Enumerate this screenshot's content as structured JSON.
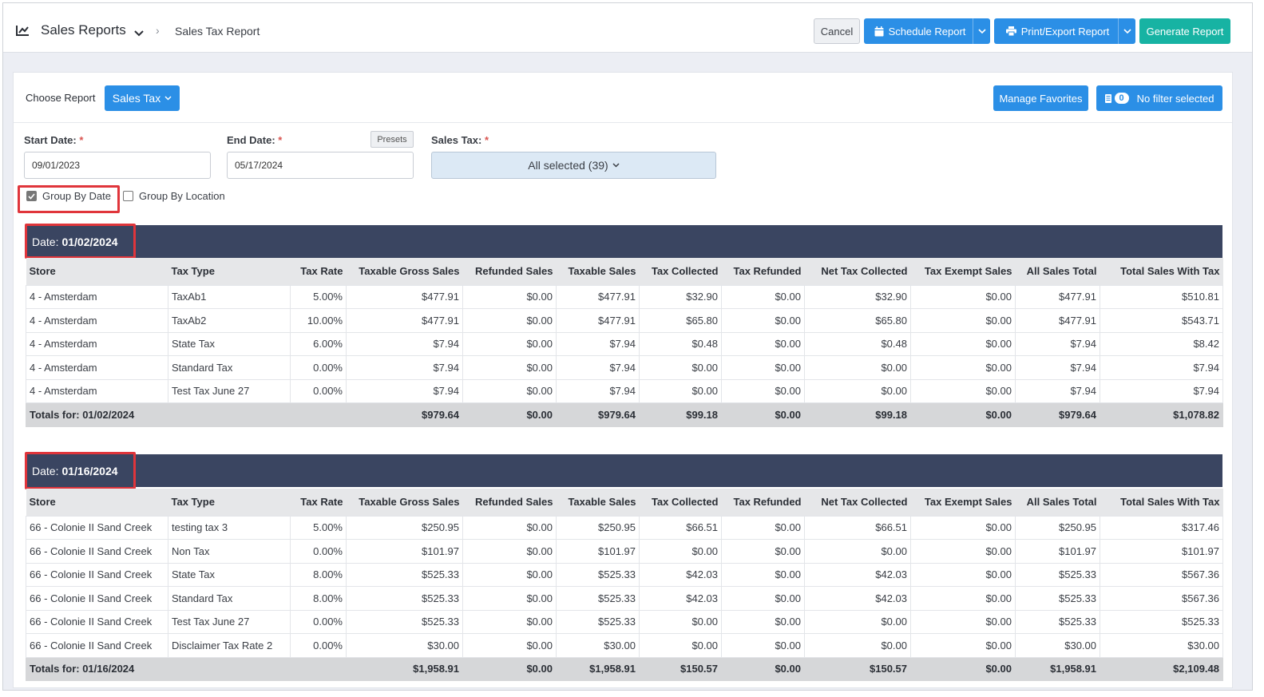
{
  "header": {
    "title": "Sales Reports",
    "breadcrumb": "Sales Tax Report",
    "cancel_label": "Cancel",
    "schedule_label": "Schedule Report",
    "export_label": "Print/Export Report",
    "generate_label": "Generate Report"
  },
  "toolbar": {
    "choose_label": "Choose Report",
    "report_select": "Sales Tax",
    "favorites_label": "Manage Favorites",
    "filter_count": "0",
    "filter_label": "No filter selected"
  },
  "filters": {
    "start_label": "Start Date:",
    "start_value": "09/01/2023",
    "end_label": "End Date:",
    "end_value": "05/17/2024",
    "presets_label": "Presets",
    "salestax_label": "Sales Tax:",
    "salestax_value": "All selected (39)",
    "required_mark": "*",
    "group_by_date_label": "Group By Date",
    "group_by_date_checked": true,
    "group_by_location_label": "Group By Location",
    "group_by_location_checked": false
  },
  "columns": [
    "Store",
    "Tax Type",
    "Tax Rate",
    "Taxable Gross Sales",
    "Refunded Sales",
    "Taxable Sales",
    "Tax Collected",
    "Tax Refunded",
    "Net Tax Collected",
    "Tax Exempt Sales",
    "All Sales Total",
    "Total Sales With Tax"
  ],
  "groups": [
    {
      "date_label": "Date:",
      "date": "01/02/2024",
      "rows": [
        [
          "4 - Amsterdam",
          "TaxAb1",
          "5.00%",
          "$477.91",
          "$0.00",
          "$477.91",
          "$32.90",
          "$0.00",
          "$32.90",
          "$0.00",
          "$477.91",
          "$510.81"
        ],
        [
          "4 - Amsterdam",
          "TaxAb2",
          "10.00%",
          "$477.91",
          "$0.00",
          "$477.91",
          "$65.80",
          "$0.00",
          "$65.80",
          "$0.00",
          "$477.91",
          "$543.71"
        ],
        [
          "4 - Amsterdam",
          "State Tax",
          "6.00%",
          "$7.94",
          "$0.00",
          "$7.94",
          "$0.48",
          "$0.00",
          "$0.48",
          "$0.00",
          "$7.94",
          "$8.42"
        ],
        [
          "4 - Amsterdam",
          "Standard Tax",
          "0.00%",
          "$7.94",
          "$0.00",
          "$7.94",
          "$0.00",
          "$0.00",
          "$0.00",
          "$0.00",
          "$7.94",
          "$7.94"
        ],
        [
          "4 - Amsterdam",
          "Test Tax June 27",
          "0.00%",
          "$7.94",
          "$0.00",
          "$7.94",
          "$0.00",
          "$0.00",
          "$0.00",
          "$0.00",
          "$7.94",
          "$7.94"
        ]
      ],
      "totals_label": "Totals for: 01/02/2024",
      "totals": [
        "$979.64",
        "$0.00",
        "$979.64",
        "$99.18",
        "$0.00",
        "$99.18",
        "$0.00",
        "$979.64",
        "$1,078.82"
      ]
    },
    {
      "date_label": "Date:",
      "date": "01/16/2024",
      "rows": [
        [
          "66 - Colonie II Sand Creek",
          "testing tax 3",
          "5.00%",
          "$250.95",
          "$0.00",
          "$250.95",
          "$66.51",
          "$0.00",
          "$66.51",
          "$0.00",
          "$250.95",
          "$317.46"
        ],
        [
          "66 - Colonie II Sand Creek",
          "Non Tax",
          "0.00%",
          "$101.97",
          "$0.00",
          "$101.97",
          "$0.00",
          "$0.00",
          "$0.00",
          "$0.00",
          "$101.97",
          "$101.97"
        ],
        [
          "66 - Colonie II Sand Creek",
          "State Tax",
          "8.00%",
          "$525.33",
          "$0.00",
          "$525.33",
          "$42.03",
          "$0.00",
          "$42.03",
          "$0.00",
          "$525.33",
          "$567.36"
        ],
        [
          "66 - Colonie II Sand Creek",
          "Standard Tax",
          "8.00%",
          "$525.33",
          "$0.00",
          "$525.33",
          "$42.03",
          "$0.00",
          "$42.03",
          "$0.00",
          "$525.33",
          "$567.36"
        ],
        [
          "66 - Colonie II Sand Creek",
          "Test Tax June 27",
          "0.00%",
          "$525.33",
          "$0.00",
          "$525.33",
          "$0.00",
          "$0.00",
          "$0.00",
          "$0.00",
          "$525.33",
          "$525.33"
        ],
        [
          "66 - Colonie II Sand Creek",
          "Disclaimer Tax Rate 2",
          "0.00%",
          "$30.00",
          "$0.00",
          "$30.00",
          "$0.00",
          "$0.00",
          "$0.00",
          "$0.00",
          "$30.00",
          "$30.00"
        ]
      ],
      "totals_label": "Totals for: 01/16/2024",
      "totals": [
        "$1,958.91",
        "$0.00",
        "$1,958.91",
        "$150.57",
        "$0.00",
        "$150.57",
        "$0.00",
        "$1,958.91",
        "$2,109.48"
      ]
    }
  ],
  "colors": {
    "primary": "#2b8fe6",
    "generate": "#17b3a3",
    "date_bar": "#3a4561",
    "highlight": "#e0353b"
  }
}
